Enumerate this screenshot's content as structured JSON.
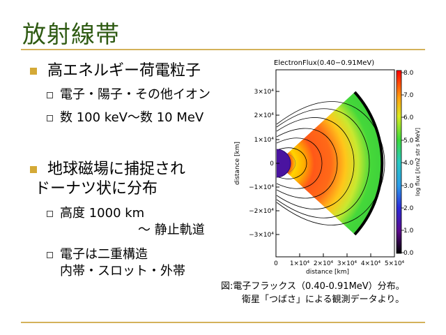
{
  "slide": {
    "title": "放射線帯",
    "bullets": [
      {
        "lines": [
          "高エネルギー荷電粒子"
        ],
        "sub": [
          {
            "lines": [
              "電子・陽子・その他イオン"
            ]
          },
          {
            "lines": [
              "数 100 keV〜数 10 MeV"
            ]
          }
        ]
      },
      {
        "lines": [
          "地球磁場に捕捉され",
          "ドーナツ状に分布"
        ],
        "sub": [
          {
            "lines": [
              "高度 1000 km",
              "〜 静止軌道"
            ]
          },
          {
            "lines": [
              "電子は二重構造",
              "内帯・スロット・外帯"
            ]
          }
        ]
      }
    ],
    "caption": {
      "line1": "図:電子フラックス（0.40-0.91MeV）分布。",
      "line2": "衛星「つばさ」による観測データより。"
    }
  },
  "chart_data": {
    "type": "heatmap",
    "title": "ElectronFlux(0.40−0.91MeV)",
    "xlabel": "distance [km]",
    "ylabel": "distance [km]",
    "colorbar_label": "log flux [/cm2 str s MeV]",
    "x_ticks": [
      "0",
      "1×10⁴",
      "2×10⁴",
      "3×10⁴",
      "4×10⁴",
      "5×10⁴"
    ],
    "y_ticks": [
      "3×10⁴",
      "2×10⁴",
      "1×10⁴",
      "0",
      "−1×10⁴",
      "−2×10⁴",
      "−3×10⁴"
    ],
    "colorbar_ticks": [
      "8.0",
      "7.0",
      "6.0",
      "5.0",
      "4.0",
      "3.0",
      "2.0",
      "1.0",
      "0.0"
    ],
    "xlim": [
      0,
      50000
    ],
    "ylim": [
      -35000,
      35000
    ],
    "clim": [
      0,
      8
    ],
    "colors": {
      "earth": "#4a13a0",
      "outer_belt": "#ff3a10",
      "slot": "#ffd21a",
      "background_flux": "#45d83a"
    }
  }
}
